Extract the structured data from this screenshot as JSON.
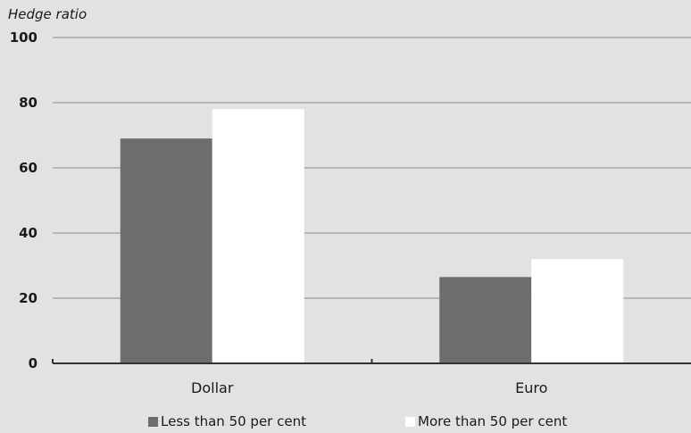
{
  "chart_data": {
    "type": "bar",
    "ylabel": "Hedge ratio",
    "ylim": [
      0,
      100
    ],
    "yticks": [
      "0",
      "20",
      "40",
      "60",
      "80",
      "100"
    ],
    "categories": [
      "Dollar",
      "Euro"
    ],
    "grid": true,
    "legend_position": "bottom",
    "series": [
      {
        "name": "Less than 50 per cent",
        "color": "#6d6e6b",
        "values": [
          69,
          26.5
        ]
      },
      {
        "name": "More than 50 per cent",
        "color": "#ffffff",
        "values": [
          78,
          32
        ]
      }
    ]
  }
}
